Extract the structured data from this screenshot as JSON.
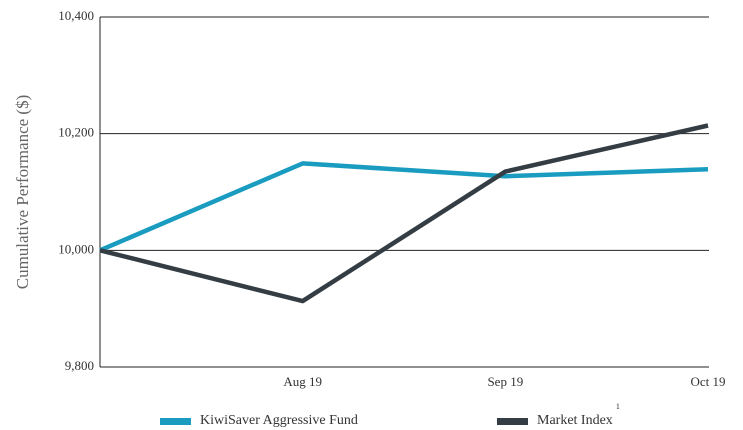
{
  "chart_data": {
    "type": "line",
    "ylabel": "Cumulative Performance ($)",
    "categories": [
      null,
      "Aug 19",
      "Sep 19",
      "Oct 19"
    ],
    "series": [
      {
        "name": "KiwiSaver Aggressive Fund",
        "color": "#1a9cc0",
        "values": [
          10000,
          10149,
          10127,
          10139
        ]
      },
      {
        "name": "Market Index",
        "color": "#343d44",
        "values": [
          10000,
          9913,
          10135,
          10214
        ],
        "footnote": "1"
      }
    ],
    "ylim": [
      9800,
      10400
    ],
    "yticks": [
      {
        "value": 9800,
        "label": "9,800"
      },
      {
        "value": 10000,
        "label": "10,000"
      },
      {
        "value": 10200,
        "label": "10,200"
      },
      {
        "value": 10400,
        "label": "10,400"
      }
    ],
    "grid": true,
    "legend": "bottom"
  }
}
